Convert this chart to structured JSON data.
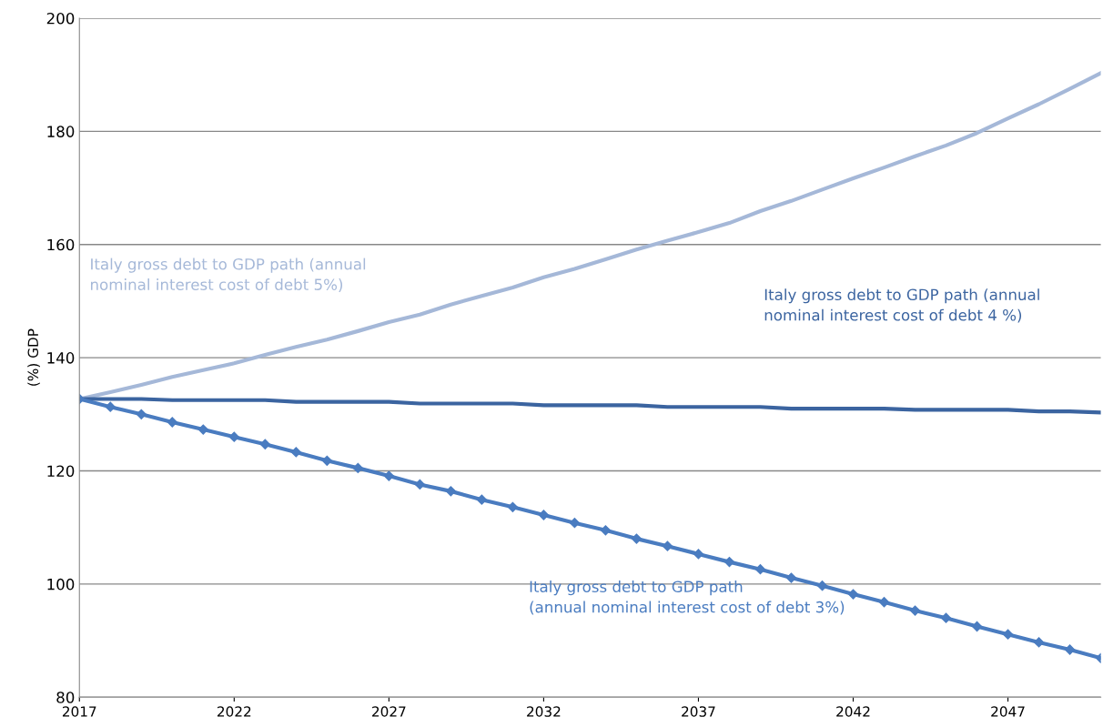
{
  "chart_data": {
    "type": "line",
    "ylabel": "(%) GDP",
    "x": [
      2017,
      2018,
      2019,
      2020,
      2021,
      2022,
      2023,
      2024,
      2025,
      2026,
      2027,
      2028,
      2029,
      2030,
      2031,
      2032,
      2033,
      2034,
      2035,
      2036,
      2037,
      2038,
      2039,
      2040,
      2041,
      2042,
      2043,
      2044,
      2045,
      2046,
      2047,
      2048,
      2049,
      2050
    ],
    "xlim": [
      2017,
      2050
    ],
    "xticks": [
      2017,
      2022,
      2027,
      2032,
      2037,
      2042,
      2047
    ],
    "ylim": [
      80,
      200
    ],
    "yticks": [
      80,
      100,
      120,
      140,
      160,
      180,
      200
    ],
    "grid": "y",
    "legend": false,
    "line_style": "solid",
    "series": [
      {
        "name": "Italy gross debt to GDP path (annual\nnominal interest cost of debt 5%)",
        "color": "#a5b8d8",
        "marker": "none",
        "values": [
          132.7,
          133.9,
          135.2,
          136.6,
          137.8,
          139.0,
          140.5,
          141.9,
          143.2,
          144.7,
          146.3,
          147.6,
          149.4,
          150.9,
          152.4,
          154.2,
          155.7,
          157.4,
          159.1,
          160.7,
          162.2,
          163.8,
          165.9,
          167.7,
          169.7,
          171.7,
          173.6,
          175.6,
          177.5,
          179.7,
          182.3,
          184.8,
          187.5,
          190.3
        ]
      },
      {
        "name": "Italy gross debt to GDP path (annual\nnominal interest cost of debt 4 %)",
        "color": "#3b64a0",
        "marker": "none",
        "values": [
          132.7,
          132.7,
          132.7,
          132.5,
          132.5,
          132.5,
          132.5,
          132.2,
          132.2,
          132.2,
          132.2,
          131.9,
          131.9,
          131.9,
          131.9,
          131.6,
          131.6,
          131.6,
          131.6,
          131.3,
          131.3,
          131.3,
          131.3,
          131.0,
          131.0,
          131.0,
          131.0,
          130.8,
          130.8,
          130.8,
          130.8,
          130.5,
          130.5,
          130.3
        ]
      },
      {
        "name": "Italy gross debt to GDP path\n(annual nominal interest cost of debt 3%)",
        "color": "#4a7cc0",
        "marker": "diamond",
        "values": [
          132.7,
          131.3,
          130.0,
          128.6,
          127.3,
          126.0,
          124.7,
          123.3,
          121.8,
          120.5,
          119.1,
          117.6,
          116.4,
          114.9,
          113.6,
          112.2,
          110.8,
          109.5,
          108.0,
          106.7,
          105.3,
          103.9,
          102.6,
          101.1,
          99.7,
          98.2,
          96.8,
          95.3,
          94.0,
          92.5,
          91.1,
          89.7,
          88.4,
          86.9
        ]
      }
    ]
  }
}
